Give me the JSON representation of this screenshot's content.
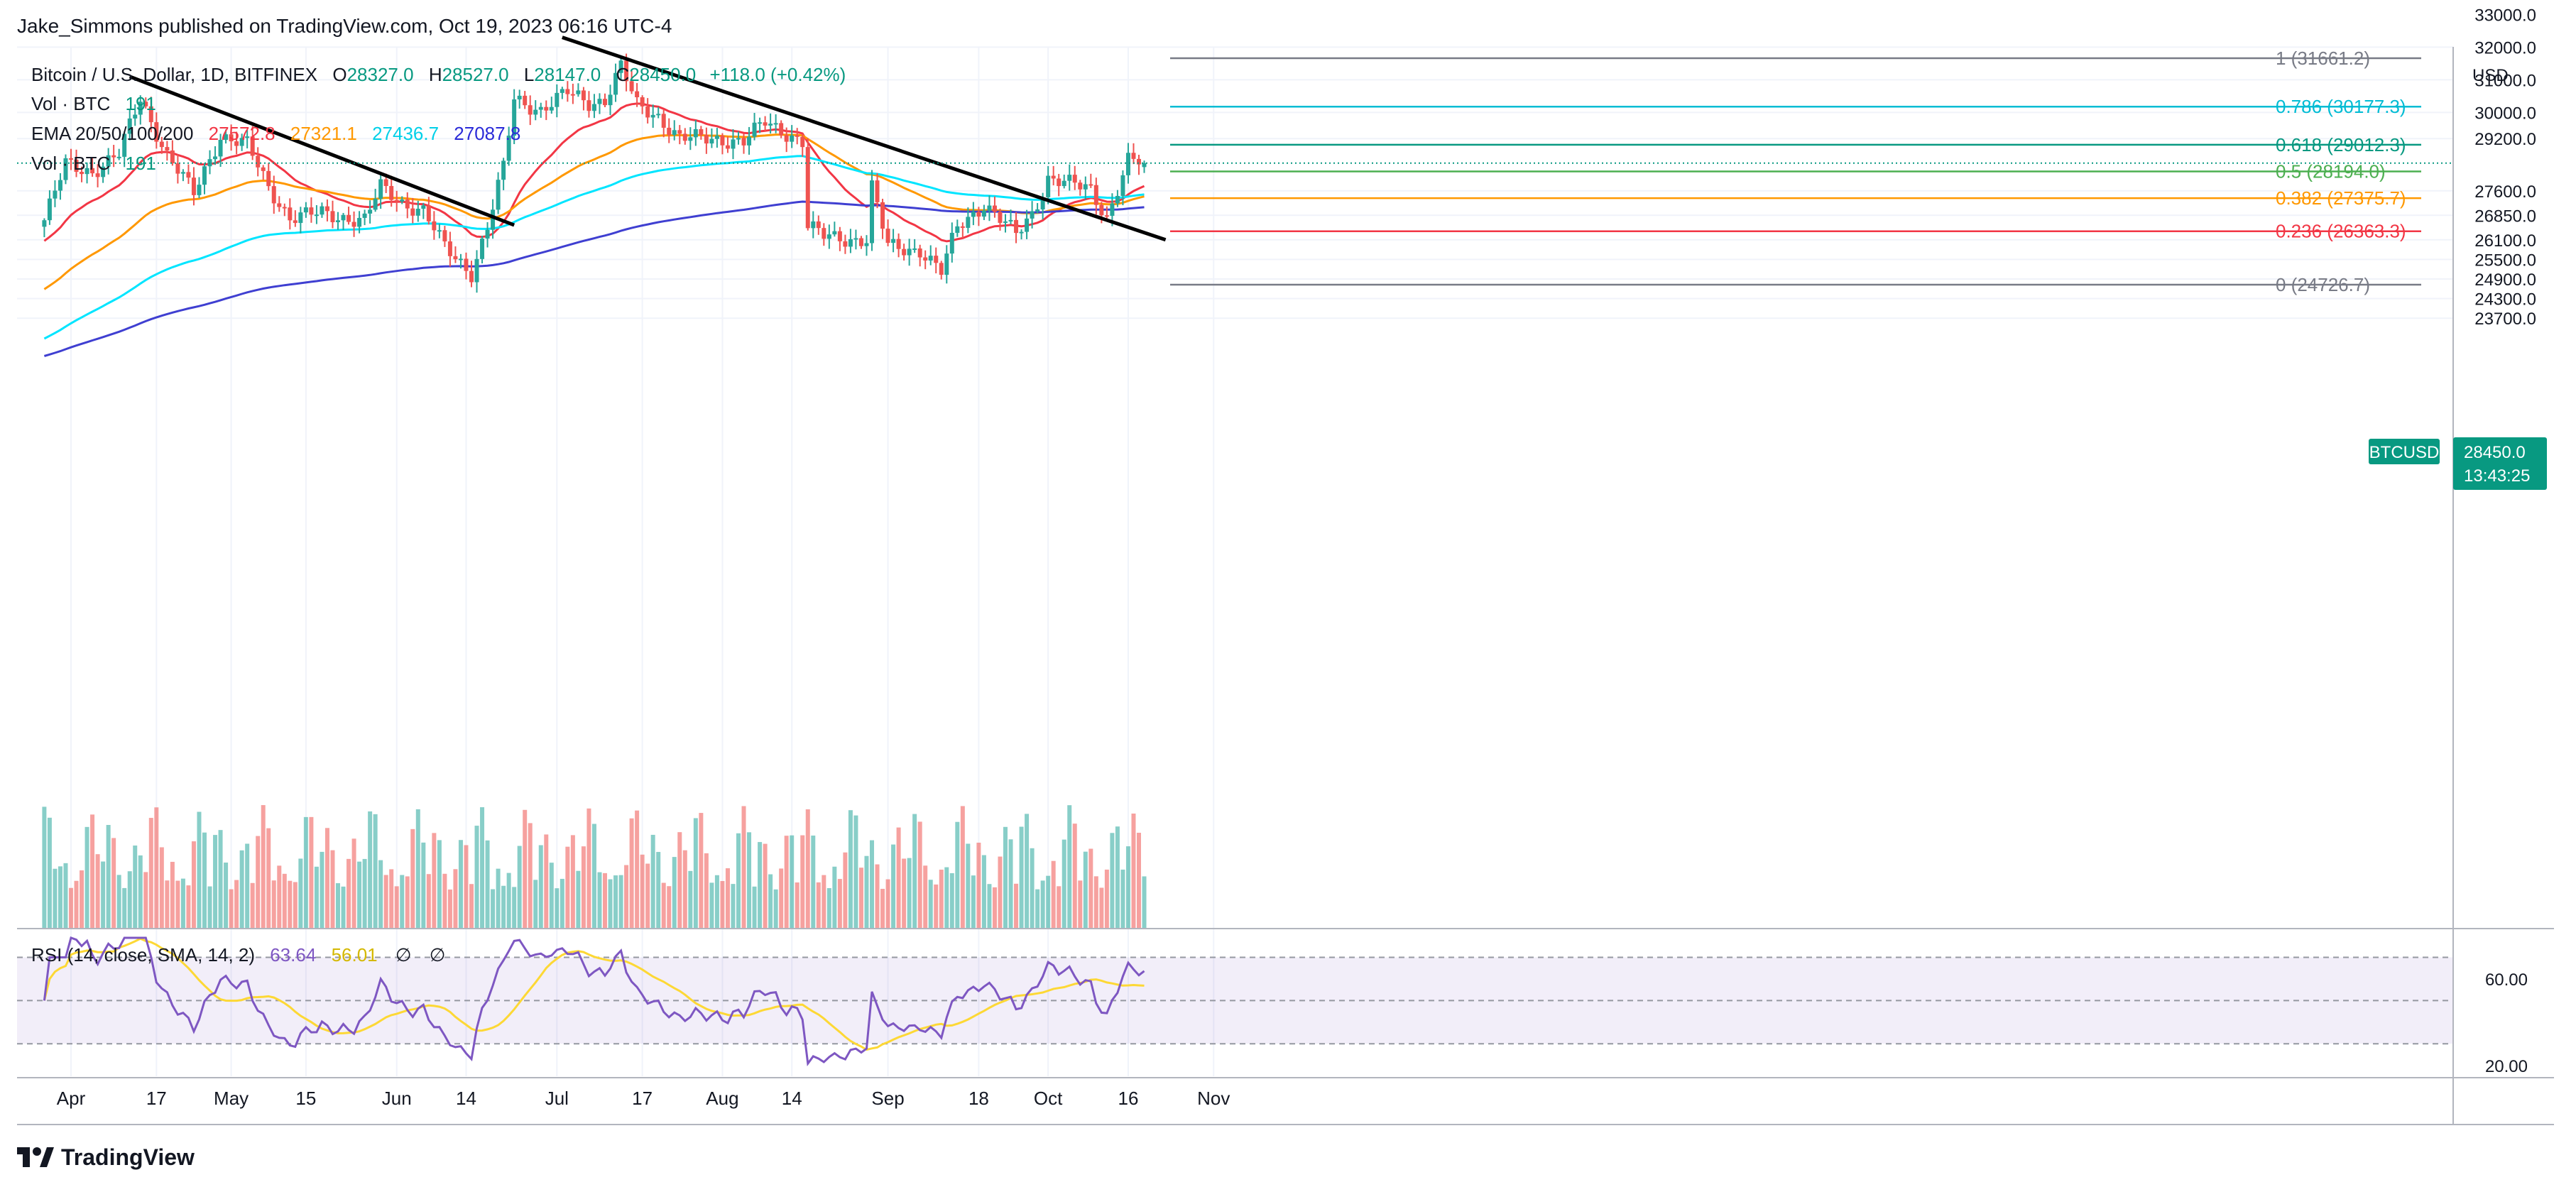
{
  "publisher": "Jake_Simmons published on TradingView.com, Oct 19, 2023 06:16 UTC-4",
  "branding": {
    "name": "TradingView",
    "icon": "tradingview-logo-icon"
  },
  "legend": {
    "symbol": "Bitcoin / U.S. Dollar, 1D, BITFINEX",
    "ohlc": {
      "o_label": "O",
      "o": "28327.0",
      "h_label": "H",
      "h": "28527.0",
      "l_label": "L",
      "l": "28147.0",
      "c_label": "C",
      "c": "28450.0",
      "change": "+118.0 (+0.42%)"
    },
    "vol1": {
      "label": "Vol · BTC",
      "value": "191"
    },
    "ema": {
      "label": "EMA 20/50/100/200",
      "v20": "27572.8",
      "v50": "27321.1",
      "v100": "27436.7",
      "v200": "27087.8"
    },
    "vol2": {
      "label": "Vol · BTC",
      "value": "191"
    },
    "rsi": {
      "label": "RSI (14, close, SMA, 14, 2)",
      "value": "63.64",
      "sma": "56.01",
      "extra1": "∅",
      "extra2": "∅"
    }
  },
  "currency": "USD",
  "price_axis": [
    "32000.0",
    "31000.0",
    "30000.0",
    "29200.0",
    "27600.0",
    "26850.0",
    "26100.0",
    "25500.0",
    "24900.0",
    "24300.0",
    "23700.0"
  ],
  "price_axis_top_partial": "33000.0",
  "rsi_axis": [
    "60.00",
    "20.00"
  ],
  "price_badge": {
    "symbol": "BTCUSD",
    "price": "28450.0",
    "countdown": "13:43:25"
  },
  "time_axis": [
    "Apr",
    "17",
    "May",
    "15",
    "Jun",
    "14",
    "Jul",
    "17",
    "Aug",
    "14",
    "Sep",
    "18",
    "Oct",
    "16",
    "Nov"
  ],
  "colors": {
    "up": "#26a69a",
    "down": "#ef5350",
    "ema20": "#f23645",
    "ema50": "#ff9800",
    "ema100": "#00e5ff",
    "ema200": "#3f3fd1",
    "rsi": "#7e57c2",
    "rsi_sma": "#fdd835",
    "trend": "#000000"
  },
  "chart_data": {
    "type": "candlestick",
    "title": "Bitcoin / U.S. Dollar, 1D, BITFINEX",
    "price_range": [
      23200,
      33000
    ],
    "rsi_range": [
      15,
      80
    ],
    "fib_levels": [
      {
        "label": "1 (31661.2)",
        "price": 31661.2,
        "color": "#787b86"
      },
      {
        "label": "0.786 (30177.3)",
        "price": 30177.3,
        "color": "#00bcd4"
      },
      {
        "label": "0.618 (29012.3)",
        "price": 29012.3,
        "color": "#089981"
      },
      {
        "label": "0.5 (28194.0)",
        "price": 28194.0,
        "color": "#4caf50"
      },
      {
        "label": "0.382 (27375.7)",
        "price": 27375.7,
        "color": "#ff9800"
      },
      {
        "label": "0.236 (26363.3)",
        "price": 26363.3,
        "color": "#f23645"
      },
      {
        "label": "0 (24726.7)",
        "price": 24726.7,
        "color": "#787b86"
      }
    ],
    "trendlines": [
      {
        "name": "trendline-1",
        "from": {
          "date": "2023-04-12",
          "price": 31100
        },
        "to": {
          "date": "2023-06-23",
          "price": 26550
        }
      },
      {
        "name": "trendline-2",
        "from": {
          "date": "2023-07-02",
          "price": 32300
        },
        "to": {
          "date": "2023-10-23",
          "price": 26100
        }
      }
    ],
    "anchors": [
      [
        "2023-03-27",
        26700
      ],
      [
        "2023-03-31",
        28400
      ],
      [
        "2023-04-05",
        28200
      ],
      [
        "2023-04-10",
        28700
      ],
      [
        "2023-04-14",
        30450
      ],
      [
        "2023-04-19",
        28700
      ],
      [
        "2023-04-24",
        27500
      ],
      [
        "2023-04-29",
        29300
      ],
      [
        "2023-05-04",
        29000
      ],
      [
        "2023-05-08",
        27700
      ],
      [
        "2023-05-12",
        26800
      ],
      [
        "2023-05-18",
        26900
      ],
      [
        "2023-05-22",
        26800
      ],
      [
        "2023-05-26",
        26700
      ],
      [
        "2023-05-29",
        27700
      ],
      [
        "2023-06-02",
        27250
      ],
      [
        "2023-06-06",
        27000
      ],
      [
        "2023-06-10",
        25850
      ],
      [
        "2023-06-15",
        25100
      ],
      [
        "2023-06-18",
        26500
      ],
      [
        "2023-06-21",
        28300
      ],
      [
        "2023-06-23",
        30400
      ],
      [
        "2023-06-28",
        30100
      ],
      [
        "2023-07-03",
        30600
      ],
      [
        "2023-07-07",
        30300
      ],
      [
        "2023-07-10",
        30400
      ],
      [
        "2023-07-13",
        31400
      ],
      [
        "2023-07-16",
        30200
      ],
      [
        "2023-07-20",
        29900
      ],
      [
        "2023-07-24",
        29200
      ],
      [
        "2023-07-31",
        29200
      ],
      [
        "2023-08-05",
        29100
      ],
      [
        "2023-08-09",
        29700
      ],
      [
        "2023-08-14",
        29300
      ],
      [
        "2023-08-16",
        29100
      ],
      [
        "2023-08-17",
        26500
      ],
      [
        "2023-08-20",
        26200
      ],
      [
        "2023-08-28",
        26100
      ],
      [
        "2023-08-29",
        27700
      ],
      [
        "2023-09-01",
        25900
      ],
      [
        "2023-09-07",
        25800
      ],
      [
        "2023-09-11",
        25100
      ],
      [
        "2023-09-14",
        26500
      ],
      [
        "2023-09-19",
        27200
      ],
      [
        "2023-09-25",
        26250
      ],
      [
        "2023-09-28",
        26900
      ],
      [
        "2023-10-01",
        28000
      ],
      [
        "2023-10-05",
        27800
      ],
      [
        "2023-10-09",
        27650
      ],
      [
        "2023-10-12",
        26800
      ],
      [
        "2023-10-16",
        28500
      ],
      [
        "2023-10-19",
        28450
      ]
    ]
  }
}
